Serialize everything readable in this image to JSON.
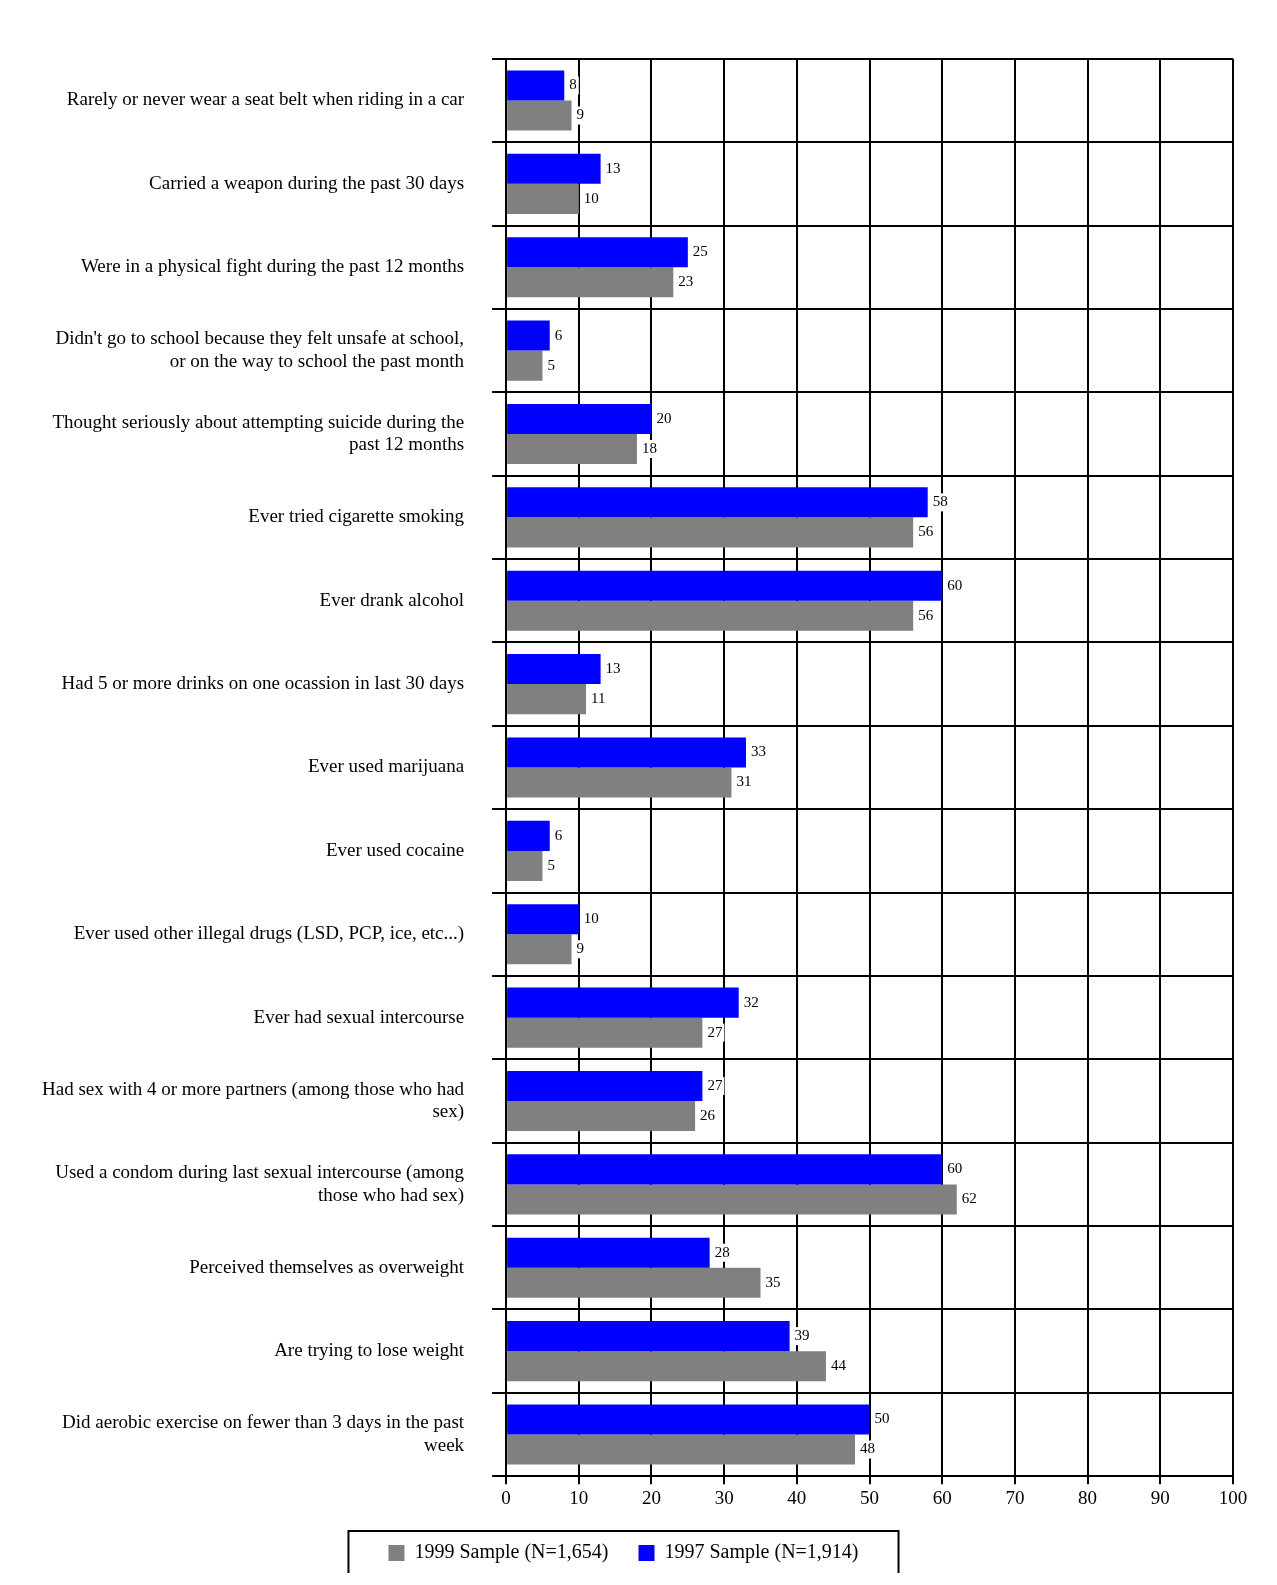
{
  "chart_data": {
    "type": "bar",
    "orientation": "horizontal",
    "categories": [
      "Rarely or never wear a seat belt when riding in a car",
      "Carried a weapon during the past 30 days",
      "Were in a physical fight during the past 12 months",
      "Didn't go to school because they felt unsafe at school, or on the way to school the past month",
      "Thought seriously about attempting suicide during the past 12 months",
      "Ever tried cigarette smoking",
      "Ever drank alcohol",
      "Had 5 or more drinks on one ocassion in last 30 days",
      "Ever used marijuana",
      "Ever used cocaine",
      "Ever used other illegal drugs (LSD, PCP, ice, etc...)",
      "Ever had sexual intercourse",
      "Had sex with 4 or more partners (among those who had sex)",
      "Used a condom during last sexual intercourse (among those who had sex)",
      "Perceived themselves as overweight",
      "Are trying to lose weight",
      "Did aerobic exercise on fewer than 3 days in the past week"
    ],
    "series": [
      {
        "name": "1997 Sample (N=1,914)",
        "color": "#0000ff",
        "values": [
          8,
          13,
          25,
          6,
          20,
          58,
          60,
          13,
          33,
          6,
          10,
          32,
          27,
          60,
          28,
          39,
          50
        ]
      },
      {
        "name": "1999 Sample (N=1,654)",
        "color": "#808080",
        "values": [
          9,
          10,
          23,
          5,
          18,
          56,
          56,
          11,
          31,
          5,
          9,
          27,
          26,
          62,
          35,
          44,
          48
        ]
      }
    ],
    "xlim": [
      0,
      100
    ],
    "xticks": [
      0,
      10,
      20,
      30,
      40,
      50,
      60,
      70,
      80,
      90,
      100
    ],
    "grid": true,
    "legend": "bottom",
    "data_labels": true
  }
}
